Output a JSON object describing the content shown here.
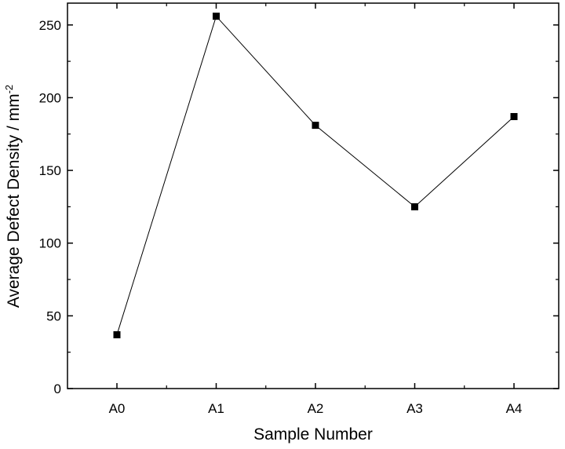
{
  "chart_data": {
    "type": "line",
    "categories": [
      "A0",
      "A1",
      "A2",
      "A3",
      "A4"
    ],
    "series": [
      {
        "values": [
          37,
          256,
          181,
          125,
          187
        ]
      }
    ],
    "xlabel": "Sample Number",
    "ylabel": {
      "main": "Average Defect Density / mm",
      "superscript": "-2"
    },
    "ylim": [
      0,
      265
    ],
    "yticks": [
      0,
      50,
      100,
      150,
      200,
      250
    ],
    "grid": false,
    "marker": "square",
    "line_color": "#000000",
    "marker_color": "#000000"
  }
}
